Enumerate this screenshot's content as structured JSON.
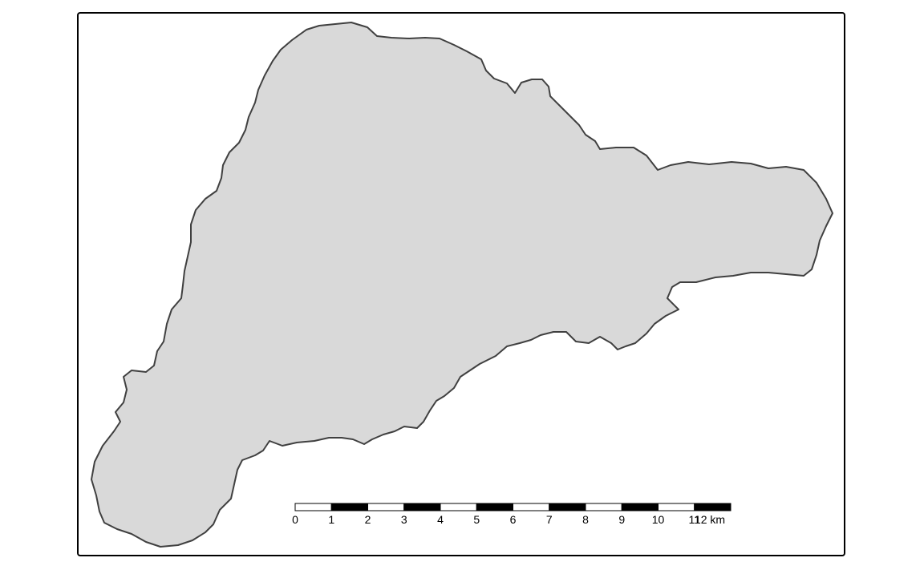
{
  "map": {
    "land_color": "#d9d9d9",
    "outline_color": "#404040",
    "frame_color": "#000000",
    "background_color": "#ffffff",
    "scale_bar": {
      "unit": "km",
      "labels": [
        "0",
        "1",
        "2",
        "3",
        "4",
        "5",
        "6",
        "7",
        "8",
        "9",
        "10",
        "11",
        "12 km"
      ],
      "fill_colors": [
        "#ffffff",
        "#000000"
      ]
    }
  }
}
